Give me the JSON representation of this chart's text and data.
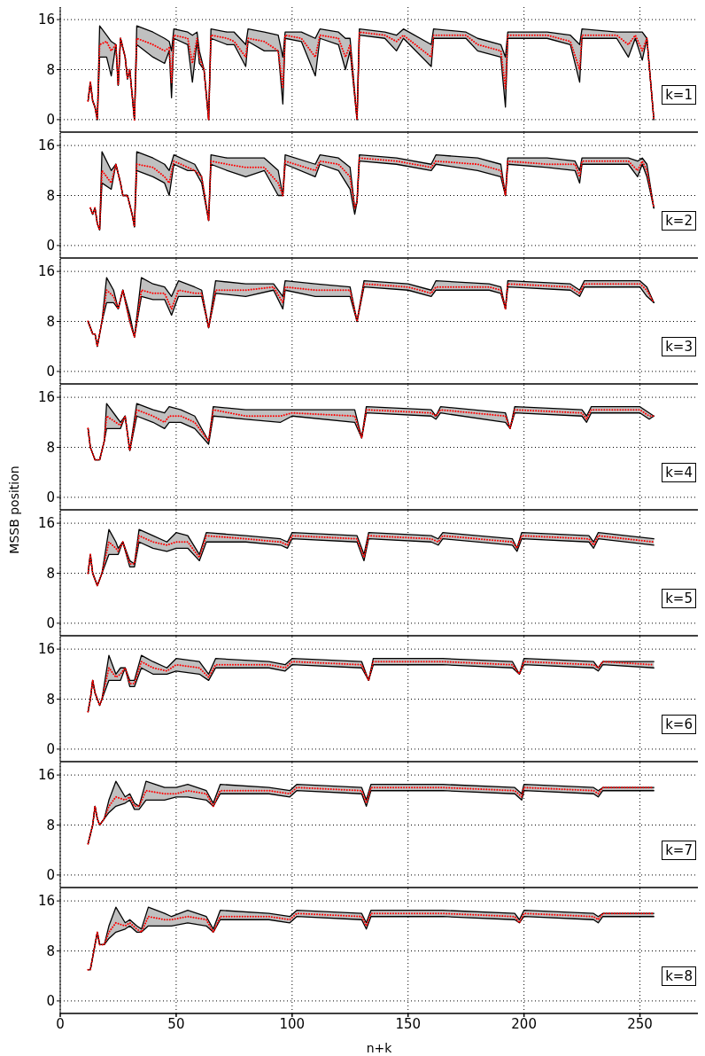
{
  "chart_data": [
    {
      "type": "line",
      "annotations": [
        "k=1"
      ],
      "xlim": [
        0,
        275
      ],
      "xticks": [
        0,
        50,
        100,
        150,
        200,
        250
      ],
      "ylim": [
        -2,
        18
      ],
      "yticks": [
        0,
        8,
        16
      ],
      "grid": true,
      "marker": "none",
      "tick_labels": "y",
      "x": [
        12,
        13,
        14,
        15,
        16,
        17,
        20,
        22,
        24,
        25,
        26,
        28,
        29,
        30,
        31,
        32,
        33,
        40,
        45,
        47,
        48,
        49,
        55,
        57,
        59,
        60,
        62,
        64,
        65,
        72,
        75,
        80,
        81,
        88,
        94,
        96,
        97,
        104,
        110,
        112,
        120,
        123,
        125,
        128,
        129,
        140,
        145,
        148,
        160,
        161,
        175,
        180,
        190,
        192,
        193,
        210,
        220,
        224,
        225,
        240,
        245,
        248,
        251,
        253,
        256
      ],
      "series": [
        {
          "color": "#ff0000",
          "line_style": "dotted",
          "values": [
            3,
            6,
            3,
            2,
            0,
            12,
            12.5,
            11,
            12,
            5.5,
            13,
            10,
            6.5,
            8,
            4,
            0,
            13,
            12,
            11,
            11.5,
            6,
            13.5,
            13,
            9,
            13,
            10,
            8,
            0,
            13.5,
            13,
            12.5,
            10,
            13,
            12.5,
            11,
            5,
            13.5,
            13,
            10,
            13.5,
            13,
            10,
            12,
            0,
            14,
            13.5,
            12.5,
            13.5,
            10,
            13.5,
            13.5,
            12,
            11,
            5,
            13.5,
            13.5,
            12.5,
            8,
            13.5,
            13.5,
            12,
            13.5,
            11,
            13,
            0
          ],
          "lower": [
            3,
            6,
            3,
            2,
            0,
            10,
            10,
            7,
            12,
            5.5,
            13,
            10,
            6.5,
            8,
            4,
            0,
            12,
            10,
            9,
            11,
            3.5,
            13,
            12,
            6,
            12.5,
            9,
            8,
            0,
            13,
            12,
            12,
            8.5,
            12.5,
            11,
            11,
            2.5,
            13,
            12.5,
            7,
            13,
            12,
            8,
            11,
            0,
            13.5,
            13,
            11,
            13,
            8.5,
            13,
            13,
            11,
            10,
            2,
            13,
            13,
            12,
            6,
            13,
            13,
            10,
            13,
            9.5,
            13,
            0
          ],
          "upper": [
            3,
            6,
            3,
            2,
            0,
            15,
            13.5,
            12.5,
            12,
            5.5,
            13,
            10,
            6.5,
            8,
            4,
            0,
            15,
            14,
            13,
            12.5,
            11,
            14.5,
            14,
            13.5,
            14,
            11,
            8,
            0,
            14.5,
            14,
            14,
            12,
            14.5,
            14,
            13.5,
            10,
            14,
            14,
            13,
            14.5,
            14,
            13,
            13,
            0,
            14.5,
            14,
            13.5,
            14.5,
            12,
            14.5,
            14,
            13,
            12,
            10,
            14,
            14,
            13.5,
            12,
            14.5,
            14,
            14,
            14,
            14,
            13,
            0
          ]
        },
        {
          "color": "#000000",
          "values": [
            3,
            6,
            3,
            2,
            0,
            10,
            10,
            7,
            12,
            5.5,
            13,
            10,
            6.5,
            8,
            4,
            0,
            12,
            10,
            9,
            11,
            3.5,
            13,
            12,
            6,
            12.5,
            9,
            8,
            0,
            13,
            12,
            12,
            8.5,
            12.5,
            11,
            11,
            2.5,
            13,
            12.5,
            7,
            13,
            12,
            8,
            11,
            0,
            13.5,
            13,
            11,
            13,
            8.5,
            13,
            13,
            11,
            10,
            2,
            13,
            13,
            12,
            6,
            13,
            13,
            10,
            13,
            9.5,
            13,
            0
          ]
        },
        {
          "color": "#000000",
          "values": [
            3,
            6,
            3,
            2,
            0,
            15,
            13.5,
            12.5,
            12,
            5.5,
            13,
            10,
            6.5,
            8,
            4,
            0,
            15,
            14,
            13,
            12.5,
            11,
            14.5,
            14,
            13.5,
            14,
            11,
            8,
            0,
            14.5,
            14,
            14,
            12,
            14.5,
            14,
            13.5,
            10,
            14,
            14,
            13,
            14.5,
            14,
            13,
            13,
            0,
            14.5,
            14,
            13.5,
            14.5,
            12,
            14.5,
            14,
            13,
            12,
            10,
            14,
            14,
            13.5,
            12,
            14.5,
            14,
            14,
            14,
            14,
            13,
            0
          ]
        }
      ]
    },
    {
      "type": "line",
      "annotations": [
        "k=2"
      ],
      "xlim": [
        0,
        275
      ],
      "xticks": [
        0,
        50,
        100,
        150,
        200,
        250
      ],
      "ylim": [
        -2,
        18
      ],
      "yticks": [
        0,
        8,
        16
      ],
      "grid": true,
      "marker": "none",
      "tick_labels": "y",
      "x": [
        13,
        14,
        15,
        16,
        17,
        18,
        22,
        24,
        26,
        27,
        29,
        31,
        32,
        33,
        40,
        45,
        47,
        49,
        55,
        58,
        61,
        64,
        65,
        72,
        80,
        88,
        94,
        96,
        97,
        110,
        112,
        120,
        125,
        127,
        128,
        129,
        145,
        160,
        162,
        180,
        190,
        192,
        193,
        210,
        222,
        224,
        225,
        245,
        249,
        251,
        253,
        256
      ],
      "series": [
        {
          "color": "#ff0000",
          "line_style": "dotted",
          "values": [
            6,
            5,
            6,
            3.5,
            2.5,
            12,
            10,
            13,
            10,
            8,
            8,
            5,
            3,
            13,
            12.5,
            11,
            10,
            13.5,
            12.5,
            12,
            11,
            4,
            13.5,
            13,
            12.5,
            12.5,
            10,
            8,
            13.5,
            12,
            13.5,
            13,
            11,
            6,
            7,
            14,
            13.5,
            12.5,
            13.5,
            13,
            12,
            8,
            13.5,
            13,
            13,
            11,
            13.5,
            13.5,
            12,
            13.5,
            12,
            6
          ],
          "lower": [
            6,
            5,
            6,
            3.5,
            2.5,
            10,
            9,
            13,
            10,
            8,
            8,
            5,
            3,
            12,
            11,
            10,
            8,
            13,
            12,
            12,
            10,
            4,
            13,
            12,
            11,
            12,
            8,
            8,
            13,
            11,
            13,
            12,
            9,
            5,
            7,
            13.5,
            13,
            12,
            13,
            12,
            11,
            8,
            13,
            12.5,
            12,
            10,
            13,
            13,
            11,
            13,
            11,
            6
          ],
          "upper": [
            6,
            5,
            6,
            3.5,
            2.5,
            15,
            12,
            13,
            10,
            8,
            8,
            5,
            3,
            15,
            14,
            13,
            12,
            14.5,
            13.5,
            13,
            11,
            4,
            14.5,
            14,
            14,
            14,
            12,
            8,
            14.5,
            13,
            14.5,
            14,
            12.5,
            6,
            7,
            14.5,
            14,
            13,
            14.5,
            14,
            13,
            8,
            14,
            14,
            13.5,
            12,
            14,
            14,
            13.5,
            14,
            13,
            6
          ]
        },
        {
          "color": "#000000",
          "values": [
            6,
            5,
            6,
            3.5,
            2.5,
            10,
            9,
            13,
            10,
            8,
            8,
            5,
            3,
            12,
            11,
            10,
            8,
            13,
            12,
            12,
            10,
            4,
            13,
            12,
            11,
            12,
            8,
            8,
            13,
            11,
            13,
            12,
            9,
            5,
            7,
            13.5,
            13,
            12,
            13,
            12,
            11,
            8,
            13,
            12.5,
            12,
            10,
            13,
            13,
            11,
            13,
            11,
            6
          ]
        },
        {
          "color": "#000000",
          "values": [
            6,
            5,
            6,
            3.5,
            2.5,
            15,
            12,
            13,
            10,
            8,
            8,
            5,
            3,
            15,
            14,
            13,
            12,
            14.5,
            13.5,
            13,
            11,
            4,
            14.5,
            14,
            14,
            14,
            12,
            8,
            14.5,
            13,
            14.5,
            14,
            12.5,
            6,
            7,
            14.5,
            14,
            13,
            14.5,
            14,
            13,
            8,
            14,
            14,
            13.5,
            12,
            14,
            14,
            13.5,
            14,
            13,
            6
          ]
        }
      ]
    },
    {
      "type": "line",
      "annotations": [
        "k=3"
      ],
      "xlim": [
        0,
        275
      ],
      "xticks": [
        0,
        50,
        100,
        150,
        200,
        250
      ],
      "ylim": [
        -2,
        18
      ],
      "yticks": [
        0,
        8,
        16
      ],
      "grid": true,
      "marker": "none",
      "tick_labels": "y",
      "x": [
        12,
        14,
        15,
        16,
        18,
        20,
        23,
        25,
        27,
        30,
        32,
        35,
        40,
        45,
        48,
        51,
        58,
        61,
        64,
        67,
        80,
        92,
        96,
        97,
        110,
        125,
        128,
        131,
        150,
        160,
        162,
        185,
        190,
        192,
        193,
        220,
        224,
        226,
        250,
        253,
        256
      ],
      "series": [
        {
          "color": "#ff0000",
          "line_style": "dotted",
          "values": [
            8,
            6,
            6,
            4,
            8,
            13,
            12,
            10,
            13,
            8,
            5.5,
            13,
            12.5,
            12.5,
            10,
            13,
            12.5,
            12.5,
            7,
            13,
            13,
            13.5,
            11,
            13.5,
            13,
            13,
            8,
            14,
            13.5,
            12.5,
            13.5,
            13.5,
            13,
            10,
            14,
            13.5,
            12.5,
            14,
            14,
            13,
            11
          ],
          "lower": [
            8,
            6,
            6,
            4,
            8,
            11,
            11,
            10,
            13,
            8,
            5.5,
            12,
            11.5,
            11.5,
            9,
            12,
            12,
            12,
            7,
            12.5,
            12,
            13,
            10,
            13,
            12,
            12,
            8,
            13.5,
            13,
            12,
            13,
            13,
            12.5,
            10,
            13.5,
            13,
            12,
            13.5,
            13.5,
            12,
            11
          ],
          "upper": [
            8,
            6,
            6,
            4,
            8,
            15,
            13,
            10,
            13,
            9,
            5.5,
            15,
            14,
            13.5,
            12,
            14.5,
            13.5,
            13,
            7,
            14.5,
            14,
            14,
            12,
            14.5,
            14,
            13.5,
            8,
            14.5,
            14,
            13,
            14.5,
            14,
            13.5,
            10,
            14.5,
            14,
            13,
            14.5,
            14.5,
            13.5,
            11
          ]
        },
        {
          "color": "#000000",
          "values": [
            8,
            6,
            6,
            4,
            8,
            11,
            11,
            10,
            13,
            8,
            5.5,
            12,
            11.5,
            11.5,
            9,
            12,
            12,
            12,
            7,
            12.5,
            12,
            13,
            10,
            13,
            12,
            12,
            8,
            13.5,
            13,
            12,
            13,
            13,
            12.5,
            10,
            13.5,
            13,
            12,
            13.5,
            13.5,
            12,
            11
          ]
        },
        {
          "color": "#000000",
          "values": [
            8,
            6,
            6,
            4,
            8,
            15,
            13,
            10,
            13,
            9,
            5.5,
            15,
            14,
            13.5,
            12,
            14.5,
            13.5,
            13,
            7,
            14.5,
            14,
            14,
            12,
            14.5,
            14,
            13.5,
            8,
            14.5,
            14,
            13,
            14.5,
            14,
            13.5,
            10,
            14.5,
            14,
            13,
            14.5,
            14.5,
            13.5,
            11
          ]
        }
      ]
    },
    {
      "type": "line",
      "annotations": [
        "k=4"
      ],
      "ylabel": "MSSB position",
      "xlim": [
        0,
        275
      ],
      "xticks": [
        0,
        50,
        100,
        150,
        200,
        250
      ],
      "ylim": [
        -2,
        18
      ],
      "yticks": [
        0,
        8,
        16
      ],
      "grid": true,
      "marker": "none",
      "tick_labels": "y",
      "x": [
        12,
        13,
        15,
        17,
        19,
        20,
        24,
        26,
        28,
        30,
        33,
        40,
        45,
        47,
        52,
        58,
        64,
        66,
        80,
        95,
        100,
        127,
        130,
        132,
        160,
        162,
        164,
        192,
        194,
        196,
        225,
        227,
        229,
        250,
        254,
        256
      ],
      "series": [
        {
          "color": "#ff0000",
          "line_style": "dotted",
          "values": [
            11,
            8,
            6,
            6,
            9,
            13,
            12,
            11.5,
            13,
            7.5,
            14,
            13,
            12,
            13,
            13,
            12,
            9,
            14,
            13,
            13,
            13.5,
            13,
            9.5,
            14,
            13.5,
            13,
            14,
            13,
            11,
            14,
            13.5,
            12.5,
            14,
            14,
            13,
            13
          ],
          "lower": [
            11,
            8,
            6,
            6,
            9,
            11,
            11,
            11,
            13,
            7.5,
            13,
            12,
            11,
            12,
            12,
            11,
            8.5,
            13,
            12.5,
            12,
            13,
            12,
            9.5,
            13.5,
            13,
            12.5,
            13.5,
            12,
            11,
            13.5,
            13,
            12,
            13.5,
            13.5,
            12.5,
            13
          ],
          "upper": [
            11,
            8,
            6,
            6,
            9,
            15,
            13,
            12,
            13,
            7.5,
            15,
            14,
            13.5,
            14.5,
            14,
            13,
            9,
            14.5,
            14,
            14,
            14,
            14,
            9.5,
            14.5,
            14,
            13,
            14.5,
            13.5,
            11,
            14.5,
            14,
            13,
            14.5,
            14.5,
            13.5,
            13
          ]
        },
        {
          "color": "#000000",
          "values": [
            11,
            8,
            6,
            6,
            9,
            11,
            11,
            11,
            13,
            7.5,
            13,
            12,
            11,
            12,
            12,
            11,
            8.5,
            13,
            12.5,
            12,
            13,
            12,
            9.5,
            13.5,
            13,
            12.5,
            13.5,
            12,
            11,
            13.5,
            13,
            12,
            13.5,
            13.5,
            12.5,
            13
          ]
        },
        {
          "color": "#000000",
          "values": [
            11,
            8,
            6,
            6,
            9,
            15,
            13,
            12,
            13,
            7.5,
            15,
            14,
            13.5,
            14.5,
            14,
            13,
            9,
            14.5,
            14,
            14,
            14,
            14,
            9.5,
            14.5,
            14,
            13,
            14.5,
            13.5,
            11,
            14.5,
            14,
            13,
            14.5,
            14.5,
            13.5,
            13
          ]
        }
      ]
    },
    {
      "type": "line",
      "annotations": [
        "k=5"
      ],
      "xlim": [
        0,
        275
      ],
      "xticks": [
        0,
        50,
        100,
        150,
        200,
        250
      ],
      "ylim": [
        -2,
        18
      ],
      "yticks": [
        0,
        8,
        16
      ],
      "grid": true,
      "marker": "none",
      "tick_labels": "y",
      "x": [
        12,
        13,
        14,
        16,
        18,
        21,
        24,
        25,
        27,
        30,
        32,
        34,
        40,
        46,
        50,
        55,
        60,
        63,
        80,
        95,
        98,
        100,
        128,
        131,
        133,
        160,
        163,
        165,
        195,
        197,
        199,
        228,
        230,
        232,
        256
      ],
      "series": [
        {
          "color": "#ff0000",
          "line_style": "dotted",
          "values": [
            8,
            11,
            8,
            6,
            8,
            13,
            12,
            11.5,
            13,
            9.5,
            9.5,
            14,
            13,
            12.5,
            13,
            13,
            10.5,
            14,
            13.5,
            13,
            12.5,
            14,
            13.5,
            10.5,
            14,
            13.5,
            13,
            14,
            13,
            12,
            14,
            13.5,
            12.5,
            14,
            13
          ],
          "lower": [
            8,
            11,
            8,
            6,
            8,
            11,
            11,
            11,
            13,
            9,
            9,
            13,
            12,
            11.5,
            12,
            12,
            10,
            13,
            13,
            12.5,
            12,
            13.5,
            13,
            10,
            13.5,
            13,
            12.5,
            13.5,
            12.5,
            11.5,
            13.5,
            13,
            12,
            13.5,
            12.5
          ],
          "upper": [
            8,
            11,
            8,
            6,
            8,
            15,
            13,
            12,
            13,
            10,
            9.5,
            15,
            14,
            13,
            14.5,
            14,
            11,
            14.5,
            14,
            13.5,
            13,
            14.5,
            14,
            11,
            14.5,
            14,
            13.5,
            14.5,
            13.5,
            12,
            14.5,
            14,
            13,
            14.5,
            13.5
          ]
        },
        {
          "color": "#000000",
          "values": [
            8,
            11,
            8,
            6,
            8,
            11,
            11,
            11,
            13,
            9,
            9,
            13,
            12,
            11.5,
            12,
            12,
            10,
            13,
            13,
            12.5,
            12,
            13.5,
            13,
            10,
            13.5,
            13,
            12.5,
            13.5,
            12.5,
            11.5,
            13.5,
            13,
            12,
            13.5,
            12.5
          ]
        },
        {
          "color": "#000000",
          "values": [
            8,
            11,
            8,
            6,
            8,
            15,
            13,
            12,
            13,
            10,
            9.5,
            15,
            14,
            13,
            14.5,
            14,
            11,
            14.5,
            14,
            13.5,
            13,
            14.5,
            14,
            11,
            14.5,
            14,
            13.5,
            14.5,
            13.5,
            12,
            14.5,
            14,
            13,
            14.5,
            13.5
          ]
        }
      ]
    },
    {
      "type": "line",
      "annotations": [
        "k=6"
      ],
      "xlim": [
        0,
        275
      ],
      "xticks": [
        0,
        50,
        100,
        150,
        200,
        250
      ],
      "ylim": [
        -2,
        18
      ],
      "yticks": [
        0,
        8,
        16
      ],
      "grid": true,
      "marker": "none",
      "tick_labels": "y",
      "x": [
        12,
        13,
        14,
        15,
        17,
        18,
        21,
        24,
        26,
        28,
        30,
        32,
        35,
        40,
        46,
        50,
        60,
        64,
        67,
        90,
        97,
        100,
        130,
        133,
        135,
        165,
        195,
        198,
        200,
        230,
        232,
        234,
        256
      ],
      "series": [
        {
          "color": "#ff0000",
          "line_style": "dotted",
          "values": [
            6,
            8,
            11,
            9,
            7,
            8,
            13,
            11.5,
            12,
            13,
            10.5,
            10.5,
            14,
            13,
            12.5,
            13.5,
            13,
            11.5,
            13.5,
            13.5,
            13,
            14,
            13.5,
            11,
            14,
            14,
            13.5,
            12,
            14,
            13.5,
            13,
            14,
            13.5
          ],
          "lower": [
            6,
            8,
            11,
            9,
            7,
            8,
            11,
            11,
            11,
            13,
            10,
            10,
            13,
            12,
            12,
            12.5,
            12,
            11,
            13,
            13,
            12.5,
            13.5,
            13,
            11,
            13.5,
            13.5,
            13,
            12,
            13.5,
            13,
            12.5,
            13.5,
            13
          ],
          "upper": [
            6,
            8,
            11,
            9,
            7,
            8,
            15,
            12,
            13,
            13,
            11,
            11,
            15,
            14,
            13,
            14.5,
            14,
            12,
            14.5,
            14,
            13.5,
            14.5,
            14,
            11,
            14.5,
            14.5,
            14,
            12,
            14.5,
            14,
            13,
            14,
            14
          ]
        },
        {
          "color": "#000000",
          "values": [
            6,
            8,
            11,
            9,
            7,
            8,
            11,
            11,
            11,
            13,
            10,
            10,
            13,
            12,
            12,
            12.5,
            12,
            11,
            13,
            13,
            12.5,
            13.5,
            13,
            11,
            13.5,
            13.5,
            13,
            12,
            13.5,
            13,
            12.5,
            13.5,
            13
          ]
        },
        {
          "color": "#000000",
          "values": [
            6,
            8,
            11,
            9,
            7,
            8,
            15,
            12,
            13,
            13,
            11,
            11,
            15,
            14,
            13,
            14.5,
            14,
            12,
            14.5,
            14,
            13.5,
            14.5,
            14,
            11,
            14.5,
            14.5,
            14,
            12,
            14.5,
            14,
            13,
            14,
            14
          ]
        }
      ]
    },
    {
      "type": "line",
      "annotations": [
        "k=7"
      ],
      "xlim": [
        0,
        275
      ],
      "xticks": [
        0,
        50,
        100,
        150,
        200,
        250
      ],
      "ylim": [
        -2,
        18
      ],
      "yticks": [
        0,
        8,
        16
      ],
      "grid": true,
      "marker": "none",
      "tick_labels": "y",
      "x": [
        12,
        14,
        15,
        16,
        17,
        19,
        21,
        24,
        28,
        30,
        32,
        34,
        37,
        45,
        50,
        55,
        63,
        66,
        69,
        90,
        99,
        102,
        130,
        132,
        134,
        165,
        196,
        199,
        200,
        230,
        232,
        234,
        256
      ],
      "series": [
        {
          "color": "#ff0000",
          "line_style": "dotted",
          "values": [
            5,
            8,
            11,
            9,
            8,
            9,
            11,
            12.5,
            12,
            12.5,
            11,
            11,
            13.5,
            13,
            13,
            13.5,
            13,
            11,
            13.5,
            13.5,
            13,
            14,
            13.5,
            11.5,
            14,
            14,
            13.5,
            12.5,
            14,
            13.5,
            13,
            14,
            14
          ],
          "lower": [
            5,
            8,
            11,
            9,
            8,
            9,
            10,
            11,
            11.5,
            12,
            10.5,
            10.5,
            12,
            12,
            12.5,
            12.5,
            12,
            11,
            13,
            13,
            12.5,
            13.5,
            13,
            11,
            13.5,
            13.5,
            13,
            12,
            13.5,
            13,
            12.5,
            13.5,
            13.5
          ],
          "upper": [
            5,
            8,
            11,
            9,
            8,
            9,
            12,
            15,
            12.5,
            13,
            11.5,
            11,
            15,
            14,
            14,
            14.5,
            13.5,
            11.5,
            14.5,
            14,
            13.5,
            14.5,
            14,
            12,
            14.5,
            14.5,
            14,
            13,
            14.5,
            14,
            13.5,
            14,
            14
          ]
        },
        {
          "color": "#000000",
          "values": [
            5,
            8,
            11,
            9,
            8,
            9,
            10,
            11,
            11.5,
            12,
            10.5,
            10.5,
            12,
            12,
            12.5,
            12.5,
            12,
            11,
            13,
            13,
            12.5,
            13.5,
            13,
            11,
            13.5,
            13.5,
            13,
            12,
            13.5,
            13,
            12.5,
            13.5,
            13.5
          ]
        },
        {
          "color": "#000000",
          "values": [
            5,
            8,
            11,
            9,
            8,
            9,
            12,
            15,
            12.5,
            13,
            11.5,
            11,
            15,
            14,
            14,
            14.5,
            13.5,
            11.5,
            14.5,
            14,
            13.5,
            14.5,
            14,
            12,
            14.5,
            14.5,
            14,
            13,
            14.5,
            14,
            13.5,
            14,
            14
          ]
        }
      ]
    },
    {
      "type": "line",
      "annotations": [
        "k=8"
      ],
      "xlabel": "n+k",
      "xlim": [
        0,
        275
      ],
      "xticks": [
        0,
        50,
        100,
        150,
        200,
        250
      ],
      "ylim": [
        -2,
        18
      ],
      "yticks": [
        0,
        8,
        16
      ],
      "grid": true,
      "marker": "none",
      "x": [
        12,
        13,
        15,
        16,
        17,
        19,
        21,
        24,
        28,
        30,
        33,
        35,
        38,
        45,
        48,
        55,
        63,
        66,
        69,
        90,
        99,
        102,
        130,
        132,
        134,
        165,
        196,
        198,
        200,
        230,
        232,
        234,
        256
      ],
      "series": [
        {
          "color": "#ff0000",
          "line_style": "dotted",
          "values": [
            5,
            5,
            9,
            11,
            9,
            9,
            11,
            12.5,
            12,
            12.5,
            11.5,
            11,
            13.5,
            13,
            13,
            13.5,
            13,
            11,
            13.5,
            13.5,
            13,
            14,
            13.5,
            12,
            14,
            14,
            13.5,
            12.5,
            14,
            13.5,
            13,
            14,
            14
          ],
          "lower": [
            5,
            5,
            9,
            11,
            9,
            9,
            10,
            11,
            11.5,
            12,
            11,
            11,
            12,
            12,
            12,
            12.5,
            12,
            11,
            13,
            13,
            12.5,
            13.5,
            13,
            11.5,
            13.5,
            13.5,
            13,
            12.5,
            13.5,
            13,
            12.5,
            13.5,
            13.5
          ],
          "upper": [
            5,
            5,
            9,
            11,
            9,
            9,
            12,
            15,
            12.5,
            13,
            12,
            11.5,
            15,
            14,
            13.5,
            14.5,
            13.5,
            11.5,
            14.5,
            14,
            13.5,
            14.5,
            14,
            12.5,
            14.5,
            14.5,
            14,
            13,
            14.5,
            14,
            13.5,
            14,
            14
          ]
        },
        {
          "color": "#000000",
          "values": [
            5,
            5,
            9,
            11,
            9,
            9,
            10,
            11,
            11.5,
            12,
            11,
            11,
            12,
            12,
            12,
            12.5,
            12,
            11,
            13,
            13,
            12.5,
            13.5,
            13,
            11.5,
            13.5,
            13.5,
            13,
            12.5,
            13.5,
            13,
            12.5,
            13.5,
            13.5
          ]
        },
        {
          "color": "#000000",
          "values": [
            5,
            5,
            9,
            11,
            9,
            9,
            12,
            15,
            12.5,
            13,
            12,
            11.5,
            15,
            14,
            13.5,
            14.5,
            13.5,
            11.5,
            14.5,
            14,
            13.5,
            14.5,
            14,
            12.5,
            14.5,
            14.5,
            14,
            13,
            14.5,
            14,
            13.5,
            14,
            14
          ]
        }
      ]
    }
  ]
}
